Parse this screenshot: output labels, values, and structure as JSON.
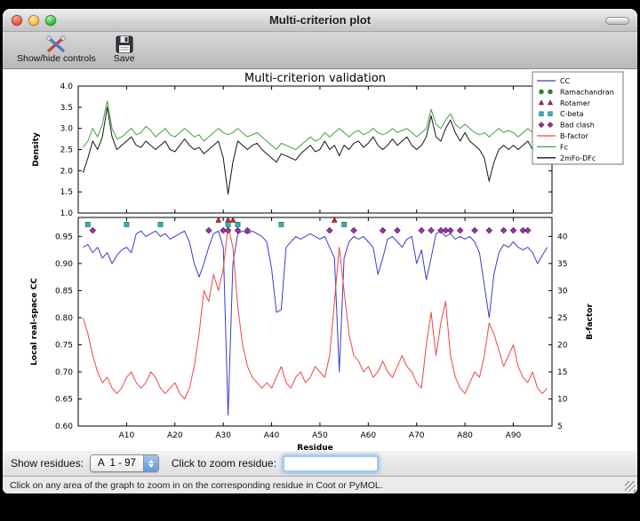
{
  "window": {
    "title": "Multi-criterion plot"
  },
  "toolbar": {
    "show_hide_label": "Show/hide controls",
    "save_label": "Save"
  },
  "figure": {
    "legend": [
      {
        "label": "CC",
        "type": "line",
        "color": "#3b3bd0"
      },
      {
        "label": "Ramachandran",
        "type": "marker",
        "shape": "circle",
        "color": "#2a8c2a"
      },
      {
        "label": "Rotamer",
        "type": "marker",
        "shape": "triangle",
        "color": "#cc2a2a"
      },
      {
        "label": "C-beta",
        "type": "marker",
        "shape": "square",
        "color": "#2fb5b5"
      },
      {
        "label": "Bad clash",
        "type": "marker",
        "shape": "diamond",
        "color": "#9933aa"
      },
      {
        "label": "B-factor",
        "type": "line",
        "color": "#f04540"
      },
      {
        "label": "Fc",
        "type": "line",
        "color": "#3fa03f"
      },
      {
        "label": "2mFo-DFc",
        "type": "line",
        "color": "#151515"
      }
    ]
  },
  "chart_data": [
    {
      "type": "line",
      "title": "Multi-criterion validation",
      "ylabel": "Density",
      "ylim": [
        1.0,
        4.0
      ],
      "yticks": [
        1.0,
        1.5,
        2.0,
        2.5,
        3.0,
        3.5,
        4.0
      ],
      "xlim": [
        0,
        98
      ],
      "x": [
        1,
        2,
        3,
        4,
        5,
        6,
        7,
        8,
        9,
        10,
        11,
        12,
        13,
        14,
        15,
        16,
        17,
        18,
        19,
        20,
        21,
        22,
        23,
        24,
        25,
        26,
        27,
        28,
        29,
        30,
        31,
        32,
        33,
        34,
        35,
        36,
        37,
        38,
        39,
        40,
        41,
        42,
        43,
        44,
        45,
        46,
        47,
        48,
        49,
        50,
        51,
        52,
        53,
        54,
        55,
        56,
        57,
        58,
        59,
        60,
        61,
        62,
        63,
        64,
        65,
        66,
        67,
        68,
        69,
        70,
        71,
        72,
        73,
        74,
        75,
        76,
        77,
        78,
        79,
        80,
        81,
        82,
        83,
        84,
        85,
        86,
        87,
        88,
        89,
        90,
        91,
        92,
        93,
        94,
        95,
        96,
        97
      ],
      "series": [
        {
          "name": "Fc",
          "color": "#3fa03f",
          "values": [
            2.55,
            2.7,
            3.0,
            2.8,
            3.1,
            3.65,
            3.0,
            2.75,
            2.8,
            2.9,
            3.0,
            2.85,
            2.9,
            3.05,
            2.95,
            2.8,
            2.9,
            3.0,
            2.85,
            2.8,
            2.9,
            3.0,
            2.9,
            2.8,
            2.85,
            2.7,
            2.8,
            2.9,
            3.0,
            2.9,
            2.85,
            2.9,
            3.0,
            2.9,
            2.8,
            2.85,
            2.9,
            2.8,
            2.7,
            2.6,
            2.5,
            2.65,
            2.6,
            2.55,
            2.5,
            2.6,
            2.7,
            2.8,
            2.7,
            2.75,
            2.9,
            2.8,
            2.9,
            3.0,
            2.9,
            2.8,
            2.9,
            2.95,
            2.85,
            2.9,
            3.0,
            2.9,
            2.85,
            2.9,
            3.0,
            2.9,
            2.95,
            3.0,
            2.9,
            2.8,
            2.9,
            3.0,
            3.45,
            3.1,
            3.0,
            3.2,
            3.35,
            3.1,
            3.0,
            3.1,
            3.0,
            2.9,
            2.85,
            2.9,
            2.8,
            2.9,
            3.0,
            2.9,
            2.95,
            2.9,
            2.8,
            2.9,
            3.0,
            2.9,
            3.3,
            3.1,
            3.0
          ]
        },
        {
          "name": "2mFo-DFc",
          "color": "#151515",
          "values": [
            1.95,
            2.3,
            2.7,
            2.5,
            2.8,
            3.5,
            2.8,
            2.5,
            2.6,
            2.7,
            2.8,
            2.6,
            2.55,
            2.7,
            2.6,
            2.5,
            2.6,
            2.7,
            2.5,
            2.45,
            2.6,
            2.75,
            2.6,
            2.5,
            2.55,
            2.4,
            2.5,
            2.6,
            2.7,
            2.3,
            1.45,
            2.2,
            2.7,
            2.6,
            2.5,
            2.6,
            2.65,
            2.5,
            2.4,
            2.3,
            2.2,
            2.4,
            2.35,
            2.3,
            2.25,
            2.4,
            2.5,
            2.6,
            2.45,
            2.5,
            2.7,
            2.5,
            2.6,
            2.35,
            2.6,
            2.5,
            2.65,
            2.7,
            2.55,
            2.65,
            2.8,
            2.6,
            2.5,
            2.6,
            2.75,
            2.6,
            2.7,
            2.8,
            2.6,
            2.5,
            2.6,
            2.8,
            3.3,
            2.8,
            2.7,
            3.0,
            3.2,
            2.9,
            2.7,
            2.9,
            2.7,
            2.6,
            2.5,
            2.3,
            1.75,
            2.2,
            2.5,
            2.6,
            2.5,
            2.6,
            2.5,
            2.6,
            2.7,
            2.5,
            3.2,
            2.8,
            2.5
          ]
        }
      ]
    },
    {
      "type": "line",
      "xlabel": "Residue",
      "ylabel_left": "Local real-space CC",
      "ylabel_right": "B-factor",
      "ylim_left": [
        0.6,
        0.985
      ],
      "yticks_left": [
        0.6,
        0.65,
        0.7,
        0.75,
        0.8,
        0.85,
        0.9,
        0.95
      ],
      "ylim_right": [
        5.0,
        43.5
      ],
      "yticks_right": [
        5,
        10,
        15,
        20,
        25,
        30,
        35,
        40
      ],
      "xlim": [
        0,
        98
      ],
      "xticks": [
        {
          "pos": 10,
          "label": "A10"
        },
        {
          "pos": 20,
          "label": "A20"
        },
        {
          "pos": 30,
          "label": "A30"
        },
        {
          "pos": 40,
          "label": "A40"
        },
        {
          "pos": 50,
          "label": "A50"
        },
        {
          "pos": 60,
          "label": "A60"
        },
        {
          "pos": 70,
          "label": "A70"
        },
        {
          "pos": 80,
          "label": "A80"
        },
        {
          "pos": 90,
          "label": "A90"
        }
      ],
      "x": [
        1,
        2,
        3,
        4,
        5,
        6,
        7,
        8,
        9,
        10,
        11,
        12,
        13,
        14,
        15,
        16,
        17,
        18,
        19,
        20,
        21,
        22,
        23,
        24,
        25,
        26,
        27,
        28,
        29,
        30,
        31,
        32,
        33,
        34,
        35,
        36,
        37,
        38,
        39,
        40,
        41,
        42,
        43,
        44,
        45,
        46,
        47,
        48,
        49,
        50,
        51,
        52,
        53,
        54,
        55,
        56,
        57,
        58,
        59,
        60,
        61,
        62,
        63,
        64,
        65,
        66,
        67,
        68,
        69,
        70,
        71,
        72,
        73,
        74,
        75,
        76,
        77,
        78,
        79,
        80,
        81,
        82,
        83,
        84,
        85,
        86,
        87,
        88,
        89,
        90,
        91,
        92,
        93,
        94,
        95,
        96,
        97
      ],
      "series": [
        {
          "name": "CC",
          "axis": "left",
          "color": "#3b3bd0",
          "values": [
            0.93,
            0.935,
            0.92,
            0.93,
            0.91,
            0.92,
            0.9,
            0.915,
            0.925,
            0.93,
            0.92,
            0.955,
            0.96,
            0.95,
            0.955,
            0.96,
            0.95,
            0.955,
            0.945,
            0.95,
            0.955,
            0.96,
            0.94,
            0.9,
            0.875,
            0.9,
            0.93,
            0.955,
            0.96,
            0.93,
            0.62,
            0.9,
            0.955,
            0.96,
            0.955,
            0.96,
            0.955,
            0.95,
            0.94,
            0.89,
            0.81,
            0.815,
            0.93,
            0.94,
            0.95,
            0.945,
            0.95,
            0.955,
            0.95,
            0.945,
            0.95,
            0.93,
            0.91,
            0.7,
            0.91,
            0.94,
            0.95,
            0.945,
            0.95,
            0.94,
            0.93,
            0.88,
            0.91,
            0.945,
            0.95,
            0.94,
            0.93,
            0.945,
            0.95,
            0.9,
            0.925,
            0.87,
            0.91,
            0.955,
            0.96,
            0.95,
            0.955,
            0.945,
            0.95,
            0.945,
            0.95,
            0.94,
            0.92,
            0.86,
            0.8,
            0.88,
            0.92,
            0.935,
            0.93,
            0.94,
            0.93,
            0.925,
            0.93,
            0.92,
            0.9,
            0.915,
            0.93
          ]
        },
        {
          "name": "B-factor",
          "axis": "right",
          "color": "#f04540",
          "values": [
            25,
            22,
            18,
            15,
            13,
            14,
            12,
            11,
            12,
            14,
            15,
            13,
            12,
            13,
            15,
            14,
            12,
            11,
            12,
            13,
            11,
            10,
            12,
            16,
            22,
            30,
            28,
            33,
            30,
            34,
            42,
            38,
            27,
            20,
            16,
            14,
            13,
            12,
            13,
            12,
            14,
            16,
            13,
            12,
            14,
            15,
            13,
            14,
            16,
            15,
            14,
            18,
            28,
            38,
            30,
            22,
            18,
            17,
            15,
            16,
            14,
            15,
            17,
            15,
            14,
            16,
            18,
            16,
            15,
            13,
            12,
            20,
            26,
            18,
            24,
            28,
            18,
            14,
            12,
            11,
            13,
            15,
            14,
            18,
            24,
            22,
            19,
            16,
            18,
            20,
            16,
            14,
            13,
            15,
            12,
            11,
            12
          ]
        }
      ],
      "outlier_markers": [
        {
          "name": "Ramachandran",
          "shape": "circle",
          "color": "#2a8c2a",
          "y": 0.98,
          "residues": []
        },
        {
          "name": "Rotamer",
          "shape": "triangle",
          "color": "#cc2a2a",
          "y": 0.98,
          "residues": [
            29,
            31,
            32,
            53
          ]
        },
        {
          "name": "C-beta",
          "shape": "square",
          "color": "#2fb5b5",
          "y": 0.972,
          "residues": [
            2,
            10,
            17,
            31,
            33,
            42,
            55
          ]
        },
        {
          "name": "Bad clash",
          "shape": "diamond",
          "color": "#9933aa",
          "y": 0.961,
          "residues": [
            3,
            27,
            30,
            31,
            33,
            35,
            52,
            57,
            63,
            66,
            71,
            73,
            75,
            76,
            77,
            79,
            82,
            85,
            88,
            90,
            92,
            93
          ]
        }
      ]
    }
  ],
  "controls": {
    "show_residues_label": "Show residues:",
    "chain_range_value": "A  1 - 97",
    "zoom_residue_label": "Click to zoom residue:",
    "zoom_residue_value": ""
  },
  "status_bar": {
    "text": "Click on any area of the graph to zoom in on the corresponding residue in Coot or PyMOL."
  }
}
